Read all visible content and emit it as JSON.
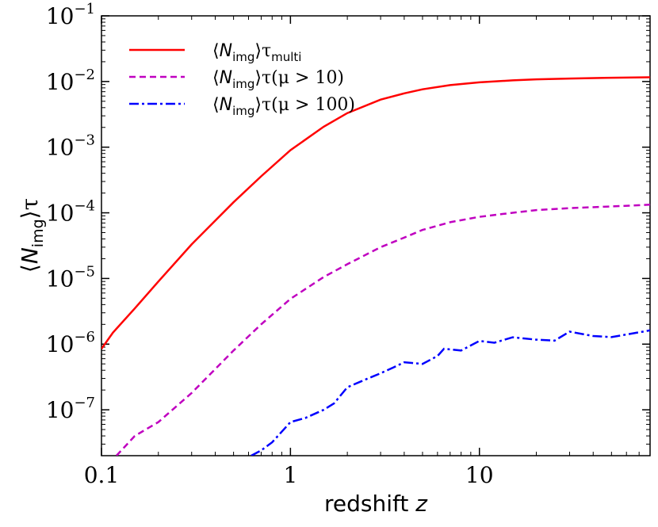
{
  "chart_data": {
    "type": "line",
    "title": "",
    "xlabel": "redshift z",
    "ylabel": "⟨N_img⟩τ",
    "x_scale": "log",
    "y_scale": "log",
    "xlim": [
      0.1,
      80
    ],
    "ylim": [
      2e-08,
      0.1
    ],
    "x_ticks": [
      {
        "value": 0.1,
        "label": "0.1"
      },
      {
        "value": 1,
        "label": "1"
      },
      {
        "value": 10,
        "label": "10"
      }
    ],
    "y_ticks": [
      {
        "value": 1e-07,
        "base": "10",
        "exp": "−7"
      },
      {
        "value": 1e-06,
        "base": "10",
        "exp": "−6"
      },
      {
        "value": 1e-05,
        "base": "10",
        "exp": "−5"
      },
      {
        "value": 0.0001,
        "base": "10",
        "exp": "−4"
      },
      {
        "value": 0.001,
        "base": "10",
        "exp": "−3"
      },
      {
        "value": 0.01,
        "base": "10",
        "exp": "−2"
      },
      {
        "value": 0.1,
        "base": "10",
        "exp": "−1"
      }
    ],
    "grid": false,
    "legend_position": "top-left",
    "series": [
      {
        "name": "⟨N_img⟩τ_multi",
        "color": "#ff0000",
        "style": "solid",
        "x": [
          0.1,
          0.115,
          0.15,
          0.2,
          0.3,
          0.5,
          0.7,
          1.0,
          1.5,
          2.0,
          3.0,
          4.0,
          5.0,
          7.0,
          10,
          15,
          20,
          30,
          50,
          80
        ],
        "y": [
          8.5e-07,
          1.5e-06,
          3.5e-06,
          9e-06,
          3.3e-05,
          0.000145,
          0.00036,
          0.0009,
          0.00205,
          0.0033,
          0.0053,
          0.0066,
          0.0076,
          0.0088,
          0.0097,
          0.0104,
          0.0108,
          0.0111,
          0.0114,
          0.0116
        ]
      },
      {
        "name": "⟨N_img⟩τ(μ > 10)",
        "color": "#c000c0",
        "style": "dashed",
        "x": [
          0.12,
          0.15,
          0.2,
          0.3,
          0.5,
          0.7,
          1.0,
          1.5,
          2.0,
          3.0,
          4.0,
          5.0,
          7.0,
          10,
          15,
          20,
          30,
          50,
          80
        ],
        "y": [
          2e-08,
          4e-08,
          6.5e-08,
          1.8e-07,
          8e-07,
          2e-06,
          4.9e-06,
          1.05e-05,
          1.65e-05,
          3e-05,
          4.2e-05,
          5.5e-05,
          7.2e-05,
          8.7e-05,
          0.0001,
          0.00011,
          0.000118,
          0.000125,
          0.000133
        ]
      },
      {
        "name": "⟨N_img⟩τ(μ > 100)",
        "color": "#0000ff",
        "style": "dashdot",
        "x": [
          0.62,
          0.7,
          0.8,
          1.0,
          1.2,
          1.5,
          1.7,
          2.0,
          2.5,
          3.0,
          3.5,
          4.0,
          5.0,
          6.0,
          6.5,
          8.0,
          10,
          12,
          15,
          20,
          25,
          30,
          40,
          50,
          80
        ],
        "y": [
          2e-08,
          2.4e-08,
          3.2e-08,
          6.5e-08,
          7.5e-08,
          1e-07,
          1.25e-07,
          2.2e-07,
          2.9e-07,
          3.6e-07,
          4.4e-07,
          5.3e-07,
          5e-07,
          6.6e-07,
          8.5e-07,
          8e-07,
          1.12e-06,
          1.05e-06,
          1.27e-06,
          1.17e-06,
          1.13e-06,
          1.55e-06,
          1.33e-06,
          1.28e-06,
          1.62e-06
        ]
      }
    ],
    "legend": [
      {
        "prefix": "⟨",
        "main": "N",
        "sub": "img",
        "mid": "⟩τ",
        "sub2": "multi",
        "suffix": ""
      },
      {
        "prefix": "⟨",
        "main": "N",
        "sub": "img",
        "mid": "⟩τ",
        "sub2": "",
        "suffix": "(μ > 10)"
      },
      {
        "prefix": "⟨",
        "main": "N",
        "sub": "img",
        "mid": "⟩τ",
        "sub2": "",
        "suffix": "(μ > 100)"
      }
    ],
    "axis_labels": {
      "x_main": "redshift ",
      "x_var": "z",
      "y_prefix": "⟨",
      "y_main": "N",
      "y_sub": "img",
      "y_suffix": "⟩τ"
    }
  }
}
